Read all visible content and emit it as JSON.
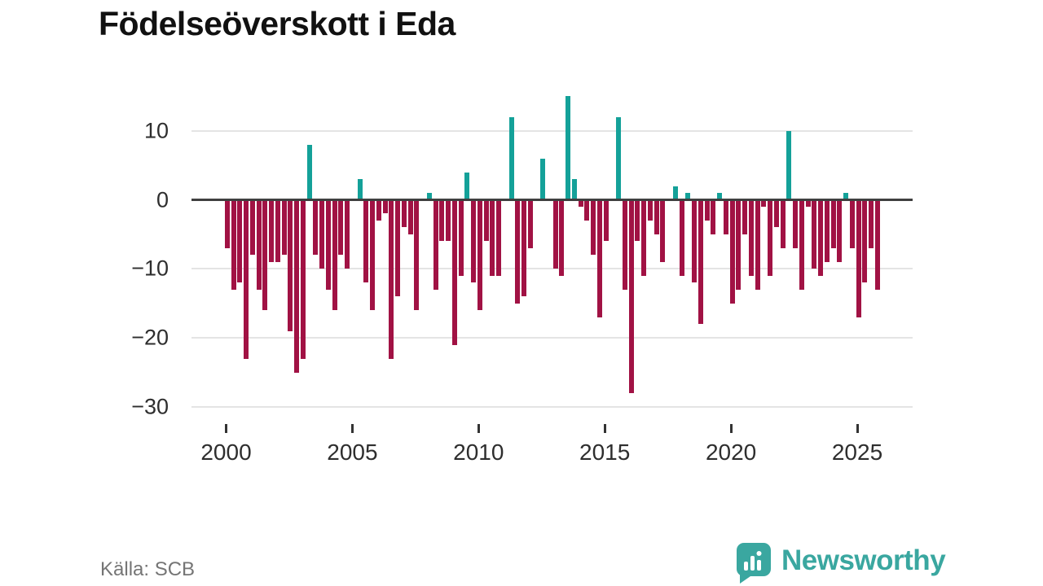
{
  "title": "Födelseöverskott i Eda",
  "source": "Källa: SCB",
  "brand": {
    "name": "Newsworthy",
    "logo_icon": "bar-chart-speech-bubble-icon"
  },
  "colors": {
    "positive": "#14a199",
    "negative": "#a11244",
    "axis": "#404040",
    "grid": "#e4e4e4",
    "tick_text": "#2e2e2e",
    "source_text": "#757575",
    "brand_teal": "#3aa7a0"
  },
  "chart_data": {
    "type": "bar",
    "title": "Födelseöverskott i Eda",
    "xlabel": "",
    "ylabel": "",
    "x_unit": "quarter",
    "start_year": 2000,
    "end_year": 2025,
    "ylim": [
      -31,
      16
    ],
    "grid": "horizontal",
    "legend": "none",
    "y_ticks": [
      10,
      0,
      -10,
      -20,
      -30
    ],
    "y_tick_labels": [
      "10",
      "0",
      "−10",
      "−20",
      "−30"
    ],
    "x_tick_years": [
      2000,
      2005,
      2010,
      2015,
      2020,
      2025
    ],
    "x_tick_labels": [
      "2000",
      "2005",
      "2010",
      "2015",
      "2020",
      "2025"
    ],
    "series": [
      {
        "name": "Födelseöverskott",
        "values": [
          -7,
          -13,
          -12,
          -23,
          -8,
          -13,
          -16,
          -9,
          -9,
          -8,
          -19,
          -25,
          -23,
          8,
          -8,
          -10,
          -13,
          -16,
          -8,
          -10,
          0,
          3,
          -12,
          -16,
          -3,
          -2,
          -23,
          -14,
          -4,
          -5,
          -16,
          0,
          1,
          -13,
          -6,
          -6,
          -21,
          -11,
          4,
          -12,
          -16,
          -6,
          -11,
          -11,
          0,
          12,
          -15,
          -14,
          -7,
          0,
          6,
          0,
          -10,
          -11,
          15,
          3,
          -1,
          -3,
          -8,
          -17,
          -6,
          0,
          12,
          -13,
          -28,
          -6,
          -11,
          -3,
          -5,
          -9,
          0,
          2,
          -11,
          1,
          -12,
          -18,
          -3,
          -5,
          1,
          -5,
          -15,
          -13,
          -5,
          -11,
          -13,
          -1,
          -11,
          -4,
          -7,
          10,
          -7,
          -13,
          -1,
          -10,
          -11,
          -9,
          -7,
          -9,
          1,
          -7,
          -17,
          -12,
          -7,
          -13
        ]
      }
    ]
  }
}
